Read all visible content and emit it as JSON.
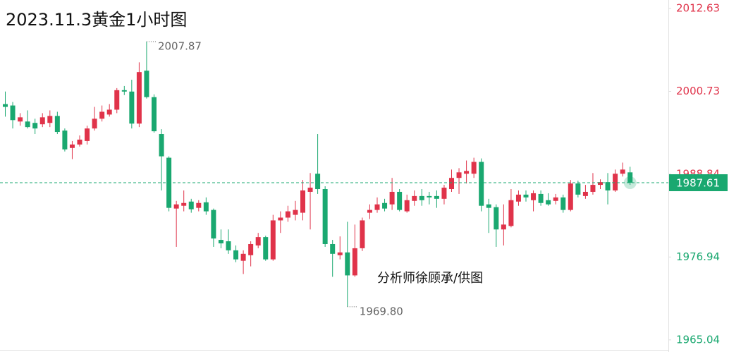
{
  "chart_data": {
    "type": "candlestick",
    "title": "2023.11.3黄金1小时图",
    "annotation": "分析师徐顾承/供图",
    "up_color": "#e0334a",
    "down_color": "#1aa870",
    "ylim": [
      1963.3,
      2013.85
    ],
    "yticks": [
      1965.04,
      1976.94,
      1988.84,
      2000.73,
      2012.63
    ],
    "last_price": 1987.61,
    "low_label": "1969.80",
    "open": [
      1998.9,
      1998.7,
      1996.4,
      1996.4,
      1996.2,
      1996.0,
      1996.2,
      1997.2,
      1995.1,
      1992.6,
      1993.1,
      1993.6,
      1995.4,
      1996.8,
      1997.4,
      1998.1,
      2000.9,
      2000.7,
      1996.1,
      2003.7,
      1999.9,
      1994.6,
      1991.2,
      1983.9,
      1984.3,
      1984.9,
      1984.0,
      1984.8,
      1983.7,
      1979.4,
      1979.2,
      1977.9,
      1976.4,
      1977.2,
      1978.6,
      1979.8,
      1976.6,
      1982.2,
      1982.6,
      1983.0,
      1983.3,
      1986.3,
      1988.9,
      1986.7,
      1978.8,
      1977.2,
      1977.6,
      1974.3,
      1978.2,
      1983.3,
      1983.7,
      1984.7,
      1984.5,
      1986.3,
      1983.5,
      1985.0,
      1985.7,
      1985.7,
      1985.7,
      1985.3,
      1986.7,
      1988.3,
      1988.9,
      1988.9,
      1990.6,
      1984.5,
      1984.1,
      1980.9,
      1981.4,
      1984.9,
      1985.9,
      1985.1,
      1986.0,
      1985.1,
      1985.0,
      1985.5,
      1983.7,
      1987.5,
      1985.7,
      1986.3,
      1987.3,
      1987.7,
      1986.5,
      1988.9,
      1989.1
    ],
    "high": [
      2000.7,
      1999.2,
      1997.6,
      1998.0,
      1996.8,
      1997.6,
      1998.0,
      1997.8,
      1995.4,
      1993.6,
      1994.4,
      1995.8,
      1998.5,
      1998.7,
      1998.9,
      2001.2,
      2001.5,
      2002.4,
      2004.9,
      2007.87,
      2000.3,
      1995.3,
      1991.4,
      1985.0,
      1986.5,
      1985.3,
      1985.1,
      1985.5,
      1983.9,
      1980.9,
      1980.9,
      1978.6,
      1977.9,
      1979.2,
      1980.4,
      1980.0,
      1983.0,
      1983.5,
      1984.3,
      1985.0,
      1988.0,
      1989.0,
      1994.6,
      1987.1,
      1979.4,
      1979.9,
      1982.0,
      1981.6,
      1982.6,
      1984.5,
      1985.5,
      1985.3,
      1988.3,
      1986.7,
      1985.9,
      1986.5,
      1986.7,
      1986.3,
      1986.5,
      1987.3,
      1989.5,
      1989.7,
      1990.8,
      1991.2,
      1991.1,
      1985.3,
      1984.5,
      1984.5,
      1986.7,
      1986.5,
      1986.5,
      1986.5,
      1986.5,
      1986.1,
      1986.0,
      1985.9,
      1988.0,
      1987.9,
      1987.3,
      1989.0,
      1988.1,
      1989.0,
      1989.5,
      1990.5,
      1989.9
    ],
    "low": [
      1997.1,
      1995.4,
      1995.8,
      1995.4,
      1994.6,
      1995.6,
      1995.6,
      1994.6,
      1992.1,
      1991.0,
      1992.8,
      1993.1,
      1995.1,
      1996.4,
      1997.1,
      1997.6,
      2000.2,
      1995.4,
      1995.6,
      1999.7,
      1994.8,
      1986.5,
      1983.5,
      1978.4,
      1983.5,
      1983.3,
      1983.5,
      1983.0,
      1978.4,
      1978.2,
      1977.4,
      1976.2,
      1974.5,
      1975.6,
      1978.2,
      1976.4,
      1976.4,
      1980.4,
      1982.0,
      1982.2,
      1982.2,
      1980.9,
      1986.0,
      1978.4,
      1974.1,
      1976.6,
      1969.8,
      1974.1,
      1977.8,
      1982.4,
      1983.3,
      1983.5,
      1983.7,
      1983.5,
      1983.3,
      1984.3,
      1984.3,
      1984.5,
      1984.0,
      1984.5,
      1986.3,
      1986.0,
      1987.5,
      1988.3,
      1983.5,
      1980.4,
      1978.4,
      1978.6,
      1981.2,
      1984.3,
      1984.9,
      1983.5,
      1984.3,
      1984.3,
      1984.5,
      1983.3,
      1983.5,
      1985.5,
      1985.3,
      1985.9,
      1986.7,
      1984.5,
      1986.3,
      1988.5,
      1987.3
    ],
    "close": [
      1998.5,
      1996.6,
      1997.0,
      1995.6,
      1995.4,
      1997.0,
      1997.2,
      1994.9,
      1992.4,
      1993.1,
      1993.8,
      1995.4,
      1996.8,
      1997.8,
      1998.1,
      2000.9,
      2000.7,
      1996.1,
      2003.5,
      1999.9,
      1995.0,
      1991.4,
      1984.0,
      1984.5,
      1984.7,
      1983.8,
      1984.7,
      1983.5,
      1979.6,
      1978.9,
      1977.9,
      1976.6,
      1977.4,
      1978.8,
      1979.8,
      1976.6,
      1982.2,
      1982.6,
      1983.5,
      1983.7,
      1986.5,
      1986.9,
      1986.7,
      1978.8,
      1977.4,
      1977.6,
      1974.3,
      1978.2,
      1982.2,
      1983.7,
      1984.5,
      1983.9,
      1986.3,
      1983.7,
      1985.1,
      1985.7,
      1985.1,
      1985.5,
      1985.3,
      1986.9,
      1988.3,
      1989.1,
      1989.3,
      1990.6,
      1984.3,
      1984.0,
      1980.9,
      1981.6,
      1985.1,
      1985.9,
      1985.5,
      1986.1,
      1984.7,
      1984.5,
      1985.5,
      1983.7,
      1987.5,
      1985.9,
      1986.3,
      1987.3,
      1987.7,
      1986.5,
      1988.9,
      1989.5,
      1987.61
    ]
  }
}
